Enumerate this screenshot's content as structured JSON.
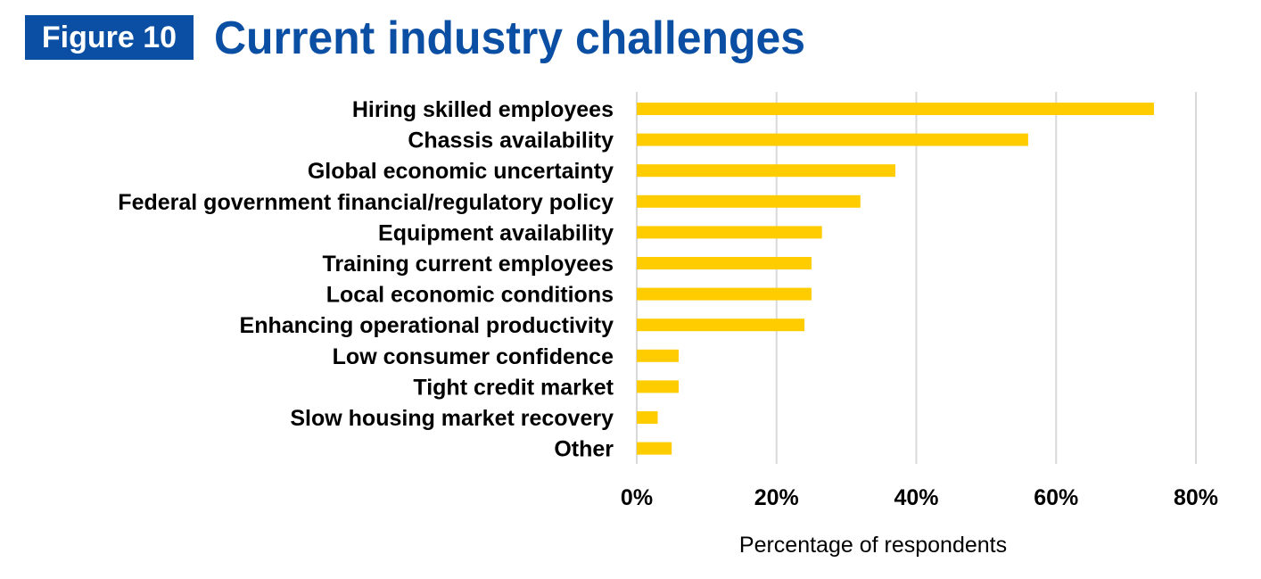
{
  "figure": {
    "badge": "Figure 10",
    "title": "Current industry challenges"
  },
  "colors": {
    "bar": "#ffcc00",
    "badge_bg": "#0a4fa3",
    "title": "#0a4fa3",
    "grid": "#d9d9d9"
  },
  "chart_data": {
    "type": "bar",
    "orientation": "horizontal",
    "title": "Current industry challenges",
    "xlabel": "Percentage of respondents",
    "ylabel": "",
    "xlim": [
      0,
      80
    ],
    "x_ticks": [
      "0%",
      "20%",
      "40%",
      "60%",
      "80%"
    ],
    "x_tick_values": [
      0,
      20,
      40,
      60,
      80
    ],
    "grid": "vertical",
    "categories": [
      "Hiring skilled employees",
      "Chassis availability",
      "Global economic uncertainty",
      "Federal government financial/regulatory policy",
      "Equipment availability",
      "Training current employees",
      "Local economic conditions",
      "Enhancing operational productivity",
      "Low consumer confidence",
      "Tight credit market",
      "Slow housing market recovery",
      "Other"
    ],
    "values": [
      74,
      56,
      37,
      32,
      26.5,
      25,
      25,
      24,
      6,
      6,
      3,
      5
    ]
  }
}
